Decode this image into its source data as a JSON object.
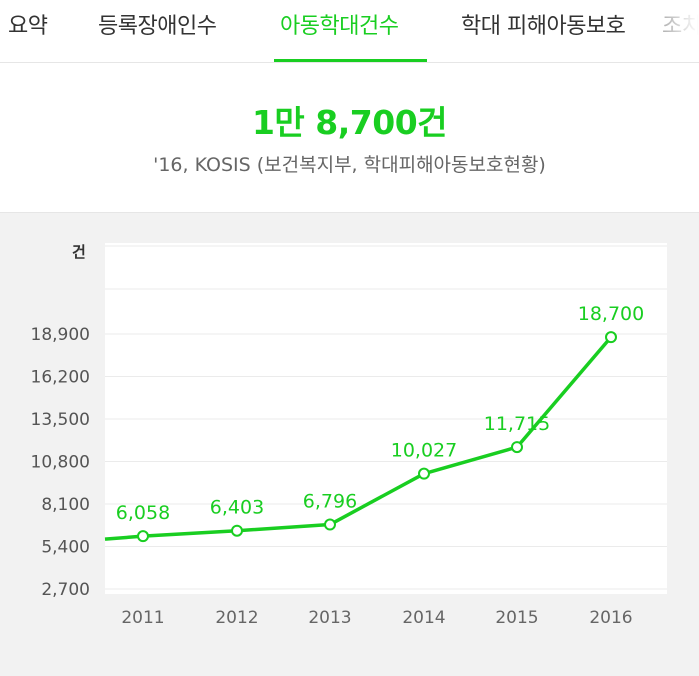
{
  "tabs": [
    {
      "label": "요약"
    },
    {
      "label": "등록장애인수"
    },
    {
      "label": "아동학대건수",
      "active": true
    },
    {
      "label": "학대 피해아동보호"
    },
    {
      "label": "조치"
    }
  ],
  "summary": {
    "headline": "1만 8,700건",
    "source": "'16, KOSIS (보건복지부, 학대피해아동보호현황)"
  },
  "colors": {
    "accent": "#19ce21",
    "background": "#f2f2f2"
  },
  "chart_data": {
    "type": "line",
    "title": "",
    "xlabel": "",
    "ylabel": "건",
    "x": [
      "2011",
      "2012",
      "2013",
      "2014",
      "2015",
      "2016"
    ],
    "series": [
      {
        "values": [
          6058,
          6403,
          6796,
          10027,
          11715,
          18700
        ]
      }
    ],
    "data_labels": [
      "6,058",
      "6,403",
      "6,796",
      "10,027",
      "11,715",
      "18,700"
    ],
    "yticks": [
      2700,
      5400,
      8100,
      10800,
      13500,
      16200,
      18900
    ],
    "ytick_labels": [
      "2,700",
      "5,400",
      "8,100",
      "10,800",
      "13,500",
      "16,200",
      "18,900"
    ],
    "ylim": [
      2700,
      18900
    ],
    "grid": true,
    "color": "#19ce21"
  }
}
